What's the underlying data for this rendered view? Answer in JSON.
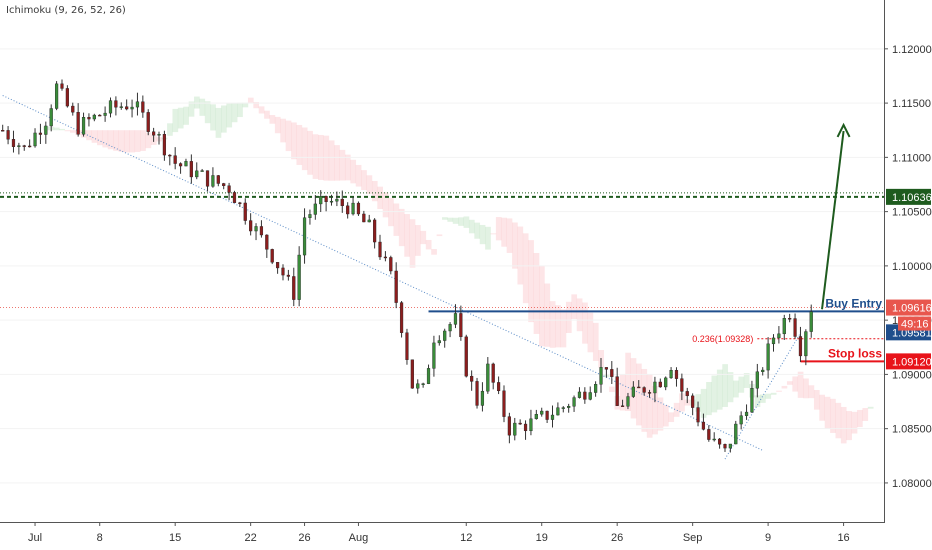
{
  "indicator": "Ichimoku (9, 26, 52, 26)",
  "chart_data": {
    "type": "candlestick",
    "indicator": "Ichimoku (9, 26, 52, 26)",
    "y_ticks": [
      "1.12000",
      "1.11500",
      "1.11000",
      "1.10500",
      "1.10000",
      "1.09500",
      "1.09000",
      "1.08500",
      "1.08000"
    ],
    "y_tick_values": [
      1.12,
      1.115,
      1.11,
      1.105,
      1.1,
      1.095,
      1.09,
      1.085,
      1.08
    ],
    "ylim": [
      1.0764,
      1.1245
    ],
    "x_ticks": [
      "Jul",
      "8",
      "15",
      "22",
      "26",
      "Aug",
      "12",
      "19",
      "26",
      "Sep",
      "9",
      "16"
    ],
    "x_tick_index": [
      6,
      18,
      32,
      46,
      56,
      66,
      86,
      100,
      114,
      128,
      142,
      156
    ],
    "resistance_level": 1.10636,
    "current_price": 1.09616,
    "buy_entry": {
      "label": "Buy Entry",
      "value": 1.09581
    },
    "fib_level": {
      "label": "0.236(1.09328)",
      "value": 1.09328
    },
    "stop_loss": {
      "label": "Stop loss",
      "value": 1.0912
    },
    "countdown": "49:16",
    "price_tags": [
      {
        "text": "1.10636",
        "value": 1.10636,
        "color": "#1e5b1e"
      },
      {
        "text": "1.09616",
        "value": 1.09616,
        "color": "#e8564d"
      },
      {
        "text": "1.09581",
        "value": 1.09581,
        "color": "#1f4e8c"
      },
      {
        "text": "1.09120",
        "value": 1.0912,
        "color": "#e8131a"
      }
    ],
    "key_points": [
      {
        "i": 0,
        "v": 1.1125
      },
      {
        "i": 4,
        "v": 1.1108
      },
      {
        "i": 8,
        "v": 1.1135
      },
      {
        "i": 10,
        "v": 1.1165
      },
      {
        "i": 14,
        "v": 1.1128
      },
      {
        "i": 20,
        "v": 1.1145
      },
      {
        "i": 24,
        "v": 1.115
      },
      {
        "i": 28,
        "v": 1.1125
      },
      {
        "i": 32,
        "v": 1.1095
      },
      {
        "i": 38,
        "v": 1.108
      },
      {
        "i": 42,
        "v": 1.1072
      },
      {
        "i": 46,
        "v": 1.104
      },
      {
        "i": 50,
        "v": 1.101
      },
      {
        "i": 54,
        "v": 1.0975
      },
      {
        "i": 56,
        "v": 1.1045
      },
      {
        "i": 60,
        "v": 1.106
      },
      {
        "i": 64,
        "v": 1.1055
      },
      {
        "i": 68,
        "v": 1.1035
      },
      {
        "i": 72,
        "v": 1.099
      },
      {
        "i": 74,
        "v": 1.0945
      },
      {
        "i": 76,
        "v": 1.089
      },
      {
        "i": 78,
        "v": 1.0885
      },
      {
        "i": 80,
        "v": 1.0935
      },
      {
        "i": 84,
        "v": 1.095
      },
      {
        "i": 86,
        "v": 1.0905
      },
      {
        "i": 88,
        "v": 1.0875
      },
      {
        "i": 90,
        "v": 1.0905
      },
      {
        "i": 94,
        "v": 1.085
      },
      {
        "i": 98,
        "v": 1.0855
      },
      {
        "i": 102,
        "v": 1.0865
      },
      {
        "i": 104,
        "v": 1.087
      },
      {
        "i": 108,
        "v": 1.0885
      },
      {
        "i": 112,
        "v": 1.091
      },
      {
        "i": 114,
        "v": 1.087
      },
      {
        "i": 118,
        "v": 1.0885
      },
      {
        "i": 122,
        "v": 1.0895
      },
      {
        "i": 124,
        "v": 1.091
      },
      {
        "i": 126,
        "v": 1.0885
      },
      {
        "i": 128,
        "v": 1.087
      },
      {
        "i": 131,
        "v": 1.084
      },
      {
        "i": 134,
        "v": 1.0828
      },
      {
        "i": 137,
        "v": 1.0862
      },
      {
        "i": 140,
        "v": 1.0895
      },
      {
        "i": 143,
        "v": 1.0935
      },
      {
        "i": 146,
        "v": 1.0958
      },
      {
        "i": 148,
        "v": 1.0925
      },
      {
        "i": 150,
        "v": 1.0962
      }
    ]
  }
}
